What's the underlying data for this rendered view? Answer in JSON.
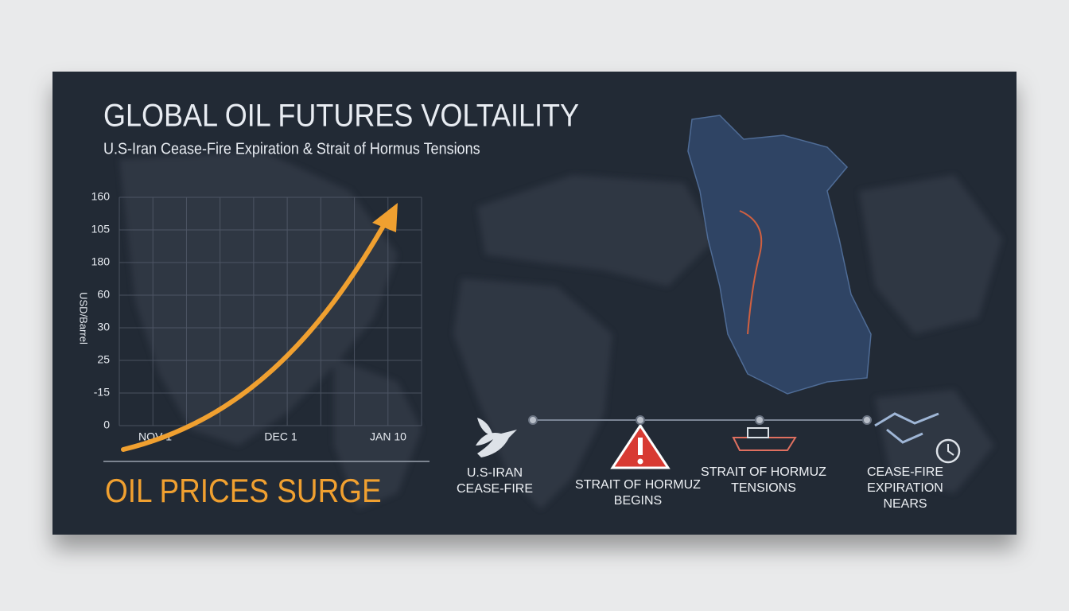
{
  "header": {
    "title": "GLOBAL OIL FUTURES VOLTAILITY",
    "subtitle": "U.S-Iran Cease-Fire Expiration & Strait of Hormus Tensions"
  },
  "chart": {
    "y_axis_label": "USD/Barrel",
    "y_labels": [
      "160",
      "105",
      "180",
      "60",
      "30",
      "25",
      "-15",
      "0"
    ],
    "x_labels": [
      "NOV 1",
      "DEC 1",
      "JAN 10"
    ]
  },
  "headline": "OIL PRICES SURGE",
  "timeline": [
    {
      "lines": [
        "U.S-IRAN",
        "CEASE-FIRE"
      ]
    },
    {
      "lines": [
        "STRAIT OF HORMUZ",
        "BEGINS"
      ]
    },
    {
      "lines": [
        "STRAIT OF HORMUZ",
        "TENSIONS"
      ]
    },
    {
      "lines": [
        "CEASE-FIRE",
        "EXPIRATION",
        "NEARS"
      ]
    }
  ]
}
